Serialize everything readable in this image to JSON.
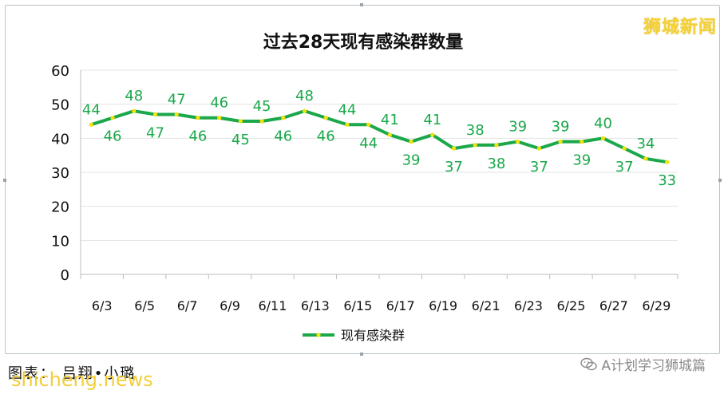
{
  "brand_mark": "狮城新闻",
  "caption": "图表：  吕翔•小璐",
  "watermark": "shicheng.news",
  "wechat_label": "A计划学习狮城篇",
  "chart_data": {
    "type": "line",
    "title": "过去28天现有感染群数量",
    "xlabel": "",
    "ylabel": "",
    "ylim": [
      0,
      60
    ],
    "yticks": [
      0,
      10,
      20,
      30,
      40,
      50,
      60
    ],
    "grid": true,
    "legend_position": "bottom",
    "line_color": "#1aa84a",
    "marker_color": "#f2e20a",
    "x": [
      "6/3",
      "6/4",
      "6/5",
      "6/6",
      "6/7",
      "6/8",
      "6/9",
      "6/10",
      "6/11",
      "6/12",
      "6/13",
      "6/14",
      "6/15",
      "6/16",
      "6/17",
      "6/18",
      "6/19",
      "6/20",
      "6/21",
      "6/22",
      "6/23",
      "6/24",
      "6/25",
      "6/26",
      "6/27",
      "6/28",
      "6/29",
      "6/30"
    ],
    "xtick_labels": [
      "6/3",
      "6/5",
      "6/7",
      "6/9",
      "6/11",
      "6/13",
      "6/15",
      "6/17",
      "6/19",
      "6/21",
      "6/23",
      "6/25",
      "6/27",
      "6/29"
    ],
    "series": [
      {
        "name": "现有感染群",
        "values": [
          44,
          46,
          48,
          47,
          47,
          46,
          46,
          45,
          45,
          46,
          48,
          46,
          44,
          44,
          41,
          39,
          41,
          37,
          38,
          38,
          39,
          37,
          39,
          39,
          40,
          37,
          34,
          33
        ]
      }
    ]
  }
}
